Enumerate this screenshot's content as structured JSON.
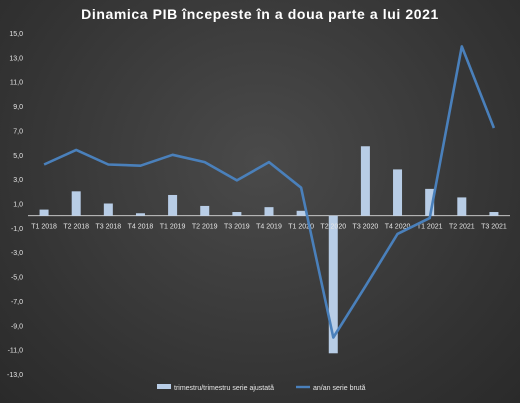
{
  "chart_data": {
    "type": "bar+line",
    "title": "Dinamica  PIB începeste  în a doua  parte  a lui  2021",
    "categories": [
      "T1 2018",
      "T2 2018",
      "T3 2018",
      "T4 2018",
      "T1 2019",
      "T2 2019",
      "T3 2019",
      "T4 2019",
      "T1 2020",
      "T2 2020",
      "T3 2020",
      "T4 2020",
      "T1 2021",
      "T2 2021",
      "T3 2021"
    ],
    "series": [
      {
        "name": "trimestru/trimestru serie ajustată",
        "type": "bar",
        "color": "#b8cde6",
        "values": [
          0.5,
          2.0,
          1.0,
          0.2,
          1.7,
          0.8,
          0.3,
          0.7,
          0.4,
          -11.3,
          5.7,
          3.8,
          2.2,
          1.5,
          0.3
        ]
      },
      {
        "name": "an/an serie brută",
        "type": "line",
        "color": "#4a80bb",
        "values": [
          4.2,
          5.4,
          4.2,
          4.1,
          5.0,
          4.4,
          2.9,
          4.4,
          2.3,
          -10.0,
          -5.8,
          -1.5,
          -0.2,
          13.9,
          7.2
        ]
      }
    ],
    "ylim": [
      -13,
      15
    ],
    "yticks": [
      "15,0",
      "13,0",
      "11,0",
      "9,0",
      "7,0",
      "5,0",
      "3,0",
      "1,0",
      "-1,0",
      "-3,0",
      "-5,0",
      "-7,0",
      "-9,0",
      "-11,0",
      "-13,0"
    ],
    "legend_position": "bottom",
    "grid": false
  }
}
